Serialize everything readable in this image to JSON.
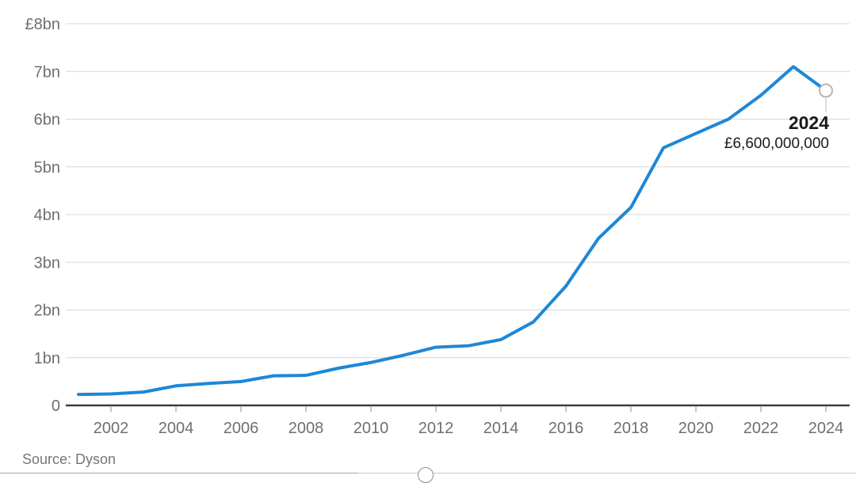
{
  "chart": {
    "source": "Source: Dyson",
    "annotation": {
      "year": "2024",
      "value": "£6,600,000,000"
    },
    "colors": {
      "line": "#1e87d7",
      "grid": "#d8d8d8",
      "axis": "#3d3d3d",
      "tick": "#b3b3b3",
      "axis_label": "#6f6f6f",
      "annotation_text": "#1a1a1a",
      "marker_ring": "#b5b5b5",
      "marker_fill": "#ffffff",
      "connector": "#bbbbbb",
      "source_text": "#767676"
    }
  },
  "chart_data": {
    "type": "line",
    "title": "",
    "xlabel": "",
    "ylabel": "",
    "unit": "£bn",
    "grid": "horizontal",
    "xlim": [
      2001,
      2024
    ],
    "ylim": [
      0,
      8
    ],
    "x": [
      2001,
      2002,
      2003,
      2004,
      2005,
      2006,
      2007,
      2008,
      2009,
      2010,
      2011,
      2012,
      2013,
      2014,
      2015,
      2016,
      2017,
      2018,
      2019,
      2020,
      2021,
      2022,
      2023,
      2024
    ],
    "values": [
      0.23,
      0.24,
      0.28,
      0.41,
      0.46,
      0.5,
      0.62,
      0.63,
      0.78,
      0.9,
      1.05,
      1.22,
      1.25,
      1.38,
      1.75,
      2.5,
      3.5,
      4.15,
      5.4,
      5.7,
      6.0,
      6.5,
      7.1,
      6.6
    ],
    "y_ticks": [
      {
        "label": "£8bn",
        "value": 8
      },
      {
        "label": "7bn",
        "value": 7
      },
      {
        "label": "6bn",
        "value": 6
      },
      {
        "label": "5bn",
        "value": 5
      },
      {
        "label": "4bn",
        "value": 4
      },
      {
        "label": "3bn",
        "value": 3
      },
      {
        "label": "2bn",
        "value": 2
      },
      {
        "label": "1bn",
        "value": 1
      },
      {
        "label": "0",
        "value": 0
      }
    ],
    "x_ticks": [
      {
        "label": "2002",
        "value": 2002
      },
      {
        "label": "2004",
        "value": 2004
      },
      {
        "label": "2006",
        "value": 2006
      },
      {
        "label": "2008",
        "value": 2008
      },
      {
        "label": "2010",
        "value": 2010
      },
      {
        "label": "2012",
        "value": 2012
      },
      {
        "label": "2014",
        "value": 2014
      },
      {
        "label": "2016",
        "value": 2016
      },
      {
        "label": "2018",
        "value": 2018
      },
      {
        "label": "2020",
        "value": 2020
      },
      {
        "label": "2022",
        "value": 2022
      },
      {
        "label": "2024",
        "value": 2024
      }
    ],
    "highlighted_point": {
      "x": 2024,
      "y": 6.6
    }
  }
}
